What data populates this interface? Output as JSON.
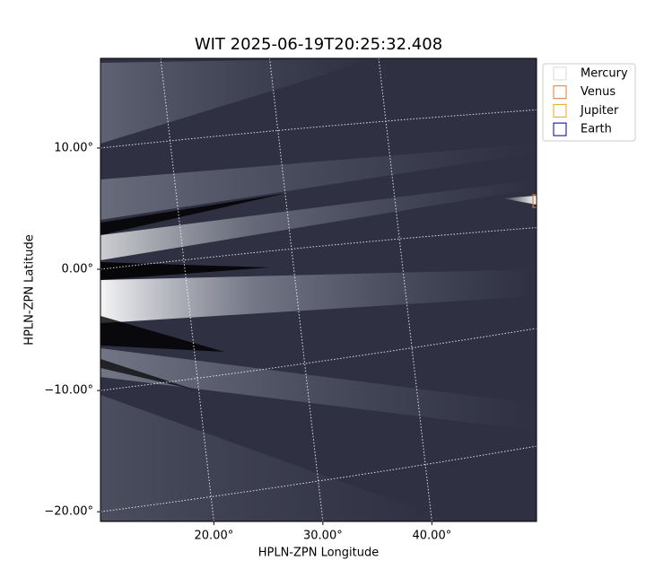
{
  "chart_data": {
    "type": "image",
    "title": "WIT 2025-06-19T20:25:32.408",
    "x_label": "HPLN-ZPN Longitude",
    "y_label": "HPLN-ZPN Latitude",
    "xlim": [
      9.6,
      49.6
    ],
    "ylim": [
      -20.8,
      17.4
    ],
    "xticks": [
      {
        "value": 20,
        "label": "20.00°"
      },
      {
        "value": 30,
        "label": "30.00°"
      },
      {
        "value": 40,
        "label": "40.00°"
      }
    ],
    "yticks": [
      {
        "value": 10,
        "label": "10.00°"
      },
      {
        "value": 0,
        "label": "0.00°"
      },
      {
        "value": -10,
        "label": "−10.00°"
      },
      {
        "value": -20,
        "label": "−20.00°"
      }
    ],
    "grid": true,
    "legend": {
      "position": "upper right",
      "entries": [
        {
          "name": "Mercury",
          "color": "#d9d9d9"
        },
        {
          "name": "Venus",
          "color": "#e07b39"
        },
        {
          "name": "Jupiter",
          "color": "#e6a817"
        },
        {
          "name": "Earth",
          "color": "#000080"
        }
      ]
    }
  }
}
